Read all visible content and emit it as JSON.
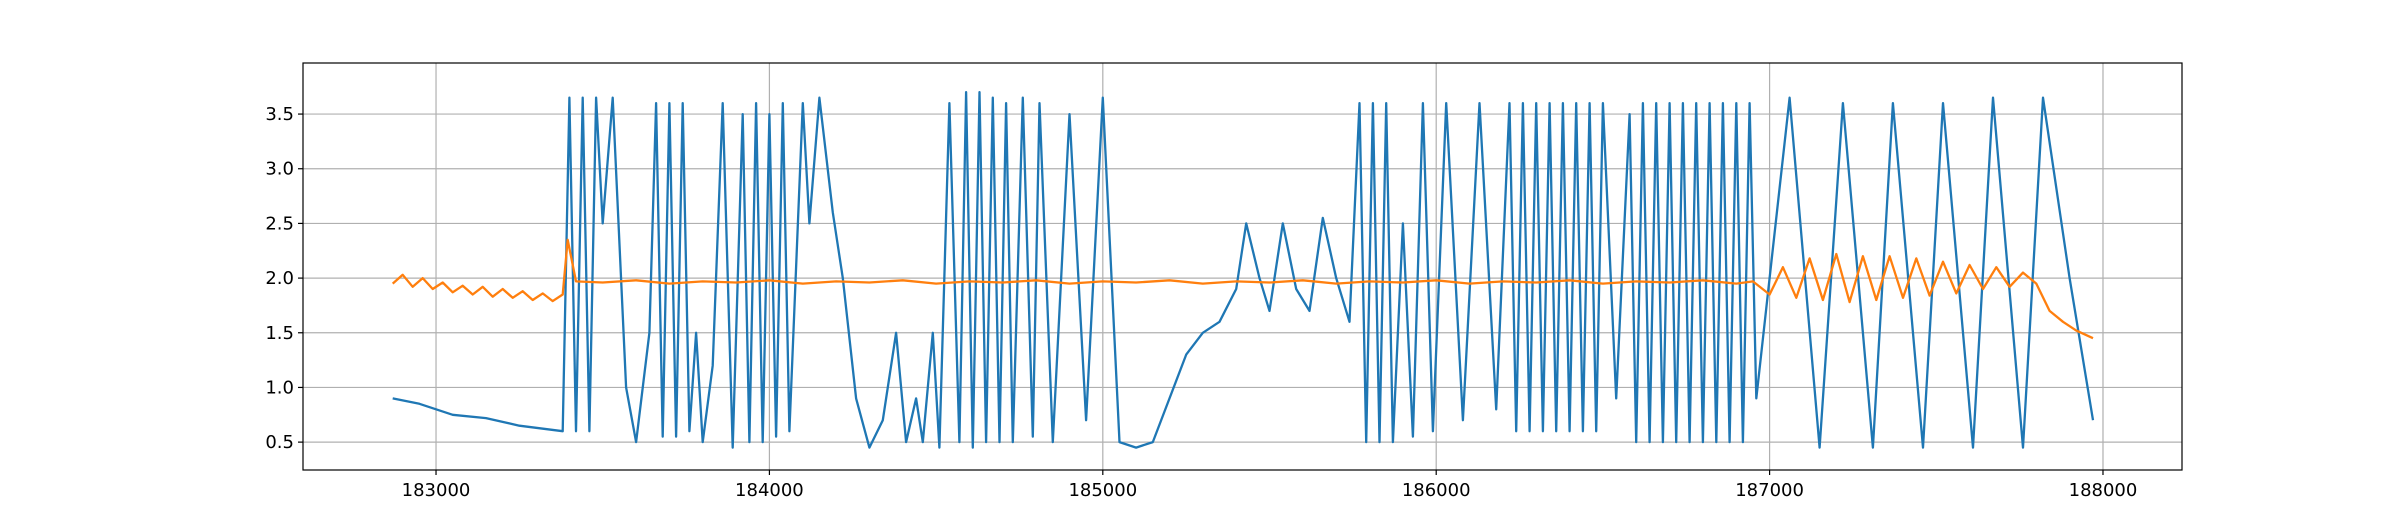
{
  "chart_data": {
    "type": "line",
    "xlim": [
      182601,
      188237
    ],
    "ylim": [
      0.245,
      3.967
    ],
    "xticks": [
      183000,
      184000,
      185000,
      186000,
      187000,
      188000
    ],
    "yticks": [
      0.5,
      {
        "value": 1,
        "label": "1.0"
      },
      1.5,
      {
        "value": 2,
        "label": "2.0"
      },
      2.5,
      {
        "value": 3,
        "label": "3.0"
      },
      3.5
    ],
    "grid": true,
    "series": [
      {
        "color": "#1f77b4",
        "x": [
          182870,
          182950,
          183050,
          183150,
          183250,
          183380,
          183400,
          183420,
          183440,
          183460,
          183480,
          183500,
          183530,
          183570,
          183600,
          183640,
          183660,
          183680,
          183700,
          183720,
          183740,
          183760,
          183780,
          183800,
          183830,
          183860,
          183890,
          183920,
          183940,
          183960,
          183980,
          184000,
          184020,
          184040,
          184060,
          184100,
          184120,
          184150,
          184190,
          184220,
          184260,
          184300,
          184340,
          184380,
          184410,
          184440,
          184460,
          184490,
          184510,
          184540,
          184570,
          184590,
          184610,
          184630,
          184650,
          184670,
          184690,
          184710,
          184730,
          184760,
          184790,
          184810,
          184850,
          184900,
          184950,
          185000,
          185050,
          185100,
          185150,
          185200,
          185250,
          185300,
          185350,
          185400,
          185430,
          185470,
          185500,
          185540,
          185580,
          185620,
          185660,
          185700,
          185740,
          185770,
          185790,
          185810,
          185830,
          185850,
          185870,
          185900,
          185930,
          185960,
          185990,
          186030,
          186080,
          186130,
          186180,
          186220,
          186240,
          186260,
          186280,
          186300,
          186320,
          186340,
          186360,
          186380,
          186400,
          186420,
          186440,
          186460,
          186480,
          186500,
          186540,
          186580,
          186600,
          186620,
          186640,
          186660,
          186680,
          186700,
          186720,
          186740,
          186760,
          186780,
          186800,
          186820,
          186840,
          186860,
          186880,
          186900,
          186920,
          186940,
          186960,
          187000,
          187060,
          187150,
          187220,
          187310,
          187370,
          187460,
          187520,
          187610,
          187670,
          187760,
          187820,
          187900,
          187970
        ],
        "values": [
          0.9,
          0.85,
          0.75,
          0.72,
          0.65,
          0.6,
          3.65,
          0.6,
          3.65,
          0.6,
          3.65,
          2.5,
          3.65,
          1.0,
          0.5,
          1.5,
          3.6,
          0.55,
          3.6,
          0.55,
          3.6,
          0.6,
          1.5,
          0.5,
          1.2,
          3.6,
          0.45,
          3.5,
          0.5,
          3.6,
          0.5,
          3.5,
          0.55,
          3.6,
          0.6,
          3.6,
          2.5,
          3.65,
          2.6,
          2.0,
          0.9,
          0.45,
          0.7,
          1.5,
          0.5,
          0.9,
          0.5,
          1.5,
          0.45,
          3.6,
          0.5,
          3.7,
          0.45,
          3.7,
          0.5,
          3.65,
          0.5,
          3.6,
          0.5,
          3.65,
          0.55,
          3.6,
          0.5,
          3.5,
          0.7,
          3.65,
          0.5,
          0.45,
          0.5,
          0.9,
          1.3,
          1.5,
          1.6,
          1.9,
          2.5,
          2.0,
          1.7,
          2.5,
          1.9,
          1.7,
          2.55,
          2.0,
          1.6,
          3.6,
          0.5,
          3.6,
          0.5,
          3.6,
          0.5,
          2.5,
          0.55,
          3.6,
          0.6,
          3.6,
          0.7,
          3.6,
          0.8,
          3.6,
          0.6,
          3.6,
          0.6,
          3.6,
          0.6,
          3.6,
          0.6,
          3.6,
          0.6,
          3.6,
          0.6,
          3.6,
          0.6,
          3.6,
          0.9,
          3.5,
          0.5,
          3.6,
          0.5,
          3.6,
          0.5,
          3.6,
          0.5,
          3.6,
          0.5,
          3.6,
          0.5,
          3.6,
          0.5,
          3.6,
          0.5,
          3.6,
          0.5,
          3.6,
          0.9,
          2.0,
          3.65,
          0.45,
          3.6,
          0.45,
          3.6,
          0.45,
          3.6,
          0.45,
          3.65,
          0.45,
          3.65,
          2.0,
          0.7
        ]
      },
      {
        "color": "#ff7f0e",
        "x": [
          182870,
          182900,
          182930,
          182960,
          182990,
          183020,
          183050,
          183080,
          183110,
          183140,
          183170,
          183200,
          183230,
          183260,
          183290,
          183320,
          183350,
          183380,
          183395,
          183420,
          183500,
          183600,
          183700,
          183800,
          183900,
          184000,
          184100,
          184200,
          184300,
          184400,
          184500,
          184600,
          184700,
          184800,
          184900,
          185000,
          185100,
          185200,
          185300,
          185400,
          185500,
          185600,
          185700,
          185800,
          185900,
          186000,
          186100,
          186200,
          186300,
          186400,
          186500,
          186600,
          186700,
          186800,
          186900,
          186950,
          187000,
          187040,
          187080,
          187120,
          187160,
          187200,
          187240,
          187280,
          187320,
          187360,
          187400,
          187440,
          187480,
          187520,
          187560,
          187600,
          187640,
          187680,
          187720,
          187760,
          187800,
          187840,
          187880,
          187920,
          187970
        ],
        "values": [
          1.95,
          2.03,
          1.92,
          2.0,
          1.9,
          1.96,
          1.87,
          1.93,
          1.85,
          1.92,
          1.83,
          1.9,
          1.82,
          1.88,
          1.8,
          1.86,
          1.79,
          1.85,
          2.35,
          1.97,
          1.96,
          1.98,
          1.95,
          1.97,
          1.96,
          1.98,
          1.95,
          1.97,
          1.96,
          1.98,
          1.95,
          1.97,
          1.96,
          1.98,
          1.95,
          1.97,
          1.96,
          1.98,
          1.95,
          1.97,
          1.96,
          1.98,
          1.95,
          1.97,
          1.96,
          1.98,
          1.95,
          1.97,
          1.96,
          1.98,
          1.95,
          1.97,
          1.96,
          1.98,
          1.95,
          1.97,
          1.85,
          2.1,
          1.82,
          2.18,
          1.8,
          2.22,
          1.78,
          2.2,
          1.8,
          2.2,
          1.82,
          2.18,
          1.84,
          2.15,
          1.86,
          2.12,
          1.9,
          2.1,
          1.92,
          2.05,
          1.95,
          1.7,
          1.6,
          1.52,
          1.45
        ]
      }
    ]
  }
}
